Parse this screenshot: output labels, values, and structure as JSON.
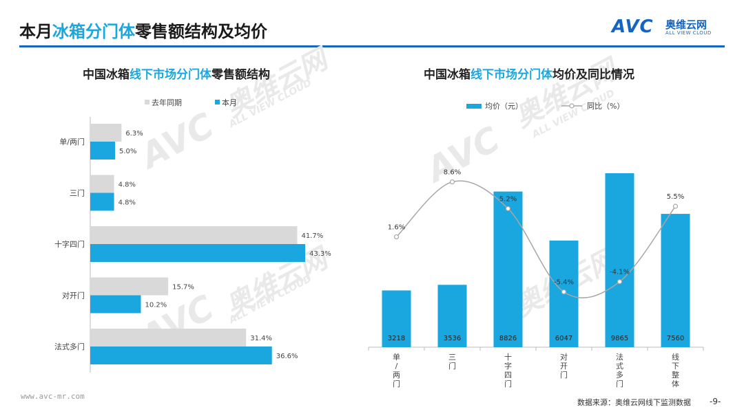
{
  "header": {
    "title_part1": "本月",
    "title_highlight": "冰箱分门体",
    "title_part2": "零售额结构及均价",
    "logo_avc": "AVC",
    "logo_cn": "奥维云网",
    "logo_en": "ALL VIEW CLOUD"
  },
  "watermark": {
    "cn": "奥维云网",
    "en": "ALL VIEW CLOUD",
    "avc": "AVC"
  },
  "colors": {
    "accent": "#1aa7df",
    "brand": "#1565c0",
    "grey_bar": "#d9d9d9",
    "line": "#a6a6a6"
  },
  "left_chart": {
    "title_part1": "中国冰箱",
    "title_highlight": "线下市场分门体",
    "title_part2": "零售额结构"
  },
  "right_chart": {
    "title_part1": "中国冰箱",
    "title_highlight": "线下市场分门体",
    "title_part2": "均价及同比情况"
  },
  "chart_data": [
    {
      "type": "bar",
      "orientation": "horizontal",
      "categories": [
        "单/两门",
        "三门",
        "十字四门",
        "对开门",
        "法式多门"
      ],
      "series": [
        {
          "name": "去年同期",
          "values": [
            6.3,
            4.8,
            41.7,
            15.7,
            31.4
          ],
          "labels": [
            "6.3%",
            "4.8%",
            "41.7%",
            "15.7%",
            "31.4%"
          ],
          "color": "#d9d9d9"
        },
        {
          "name": "本月",
          "values": [
            5.0,
            4.8,
            43.3,
            10.2,
            36.6
          ],
          "labels": [
            "5.0%",
            "4.8%",
            "43.3%",
            "10.2%",
            "36.6%"
          ],
          "color": "#1aa7df"
        }
      ],
      "legend": "top",
      "xlim": [
        0,
        45
      ],
      "grid": false
    },
    {
      "type": "bar",
      "secondary_type": "line",
      "categories": [
        "单/两门",
        "三门",
        "十字四门",
        "对开门",
        "法式多门",
        "线下整体"
      ],
      "series": [
        {
          "name": "均价（元）",
          "values": [
            3218,
            3536,
            8826,
            6047,
            9865,
            7560
          ],
          "labels": [
            "3218",
            "3536",
            "8826",
            "6047",
            "9865",
            "7560"
          ],
          "color": "#1aa7df"
        },
        {
          "name": "同比（%）",
          "values": [
            1.6,
            8.6,
            5.2,
            -5.4,
            -4.1,
            5.5
          ],
          "labels": [
            "1.6%",
            "8.6%",
            "5.2%",
            "-5.4%",
            "-4.1%",
            "5.5%"
          ],
          "color": "#a6a6a6",
          "axis": "secondary"
        }
      ],
      "legend": "top",
      "ylim": [
        0,
        11500
      ],
      "y2lim": [
        -12,
        16
      ],
      "grid": false
    }
  ],
  "footer": {
    "url": "www.avc-mr.com",
    "source": "数据来源：奥维云网线下监测数据",
    "page": "-9-"
  }
}
